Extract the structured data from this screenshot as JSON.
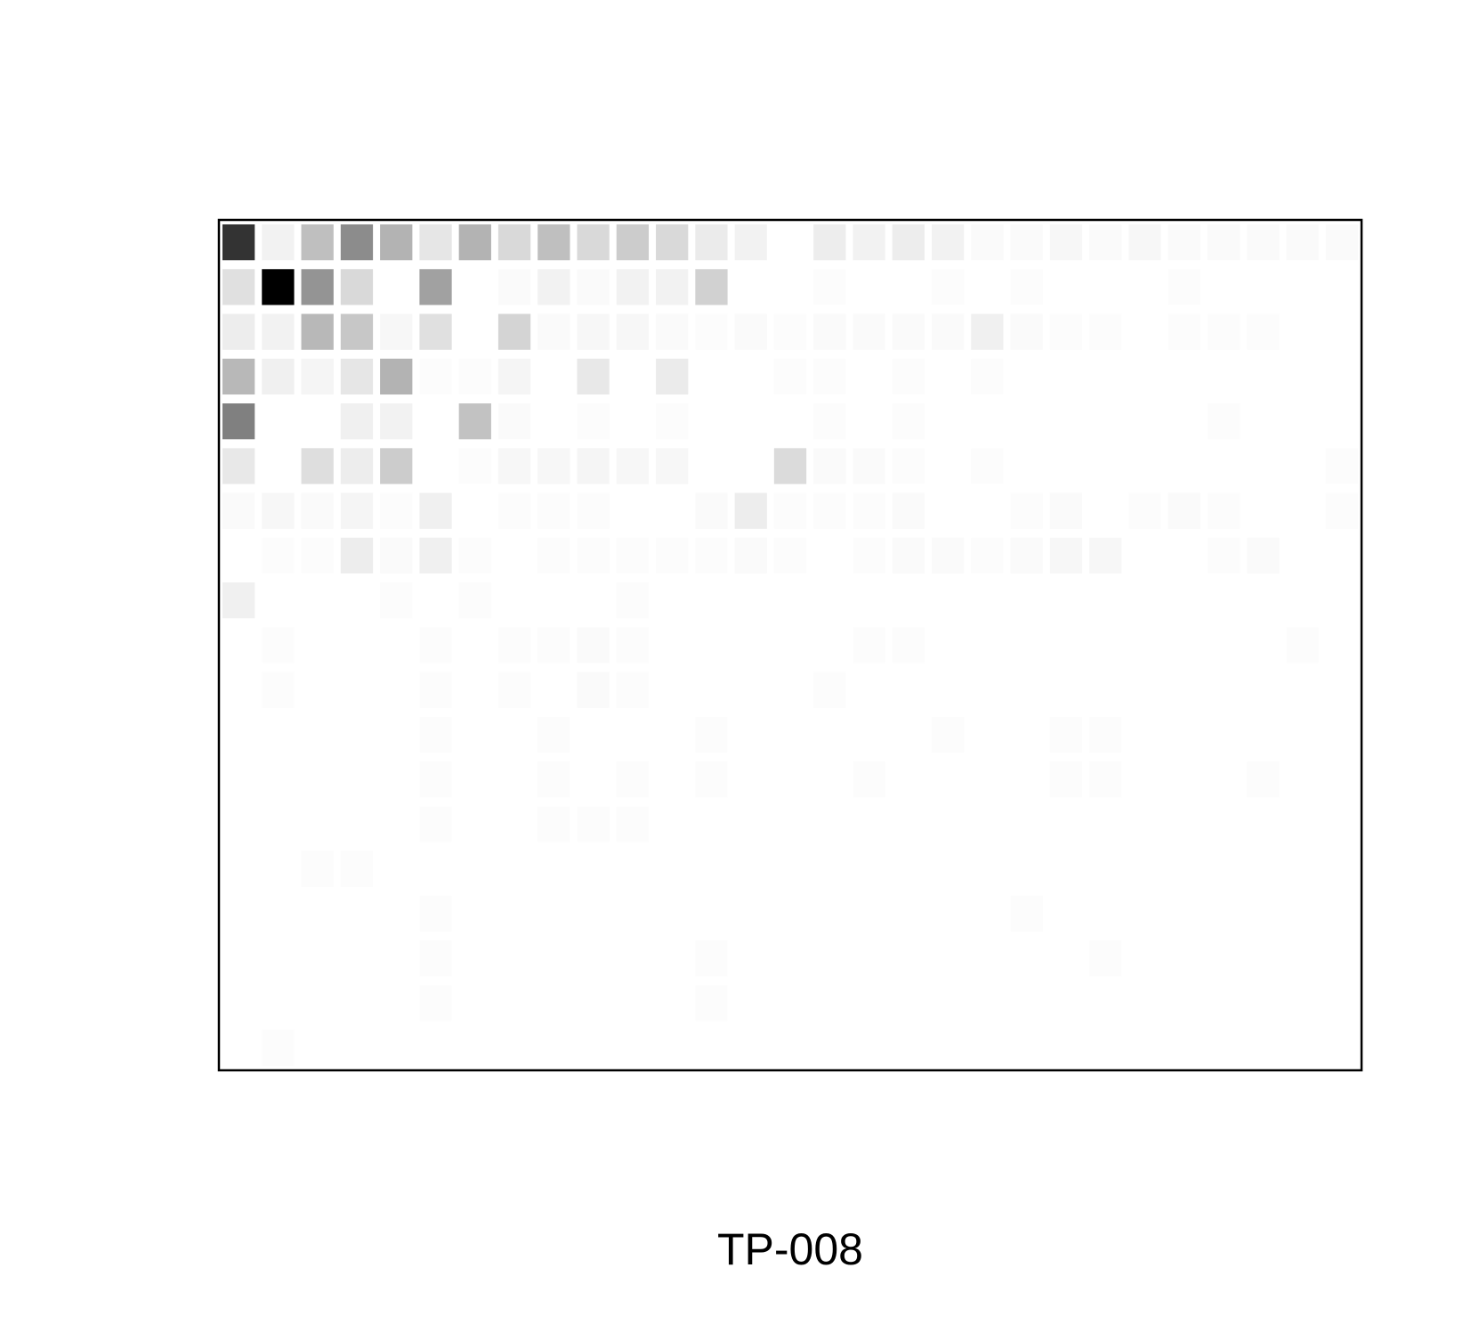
{
  "chart_data": {
    "type": "heatmap",
    "title": "TP-008",
    "xlabel": "",
    "ylabel": "",
    "grid": false,
    "n_cols": 29,
    "n_rows": 19,
    "value_range": [
      0,
      1
    ],
    "colors": {
      "low": "#ffffff",
      "high": "#000000",
      "frame": "#000000"
    },
    "values": [
      [
        0.8,
        0.05,
        0.25,
        0.45,
        0.3,
        0.1,
        0.3,
        0.15,
        0.25,
        0.15,
        0.2,
        0.15,
        0.08,
        0.05,
        0,
        0.07,
        0.05,
        0.07,
        0.05,
        0.02,
        0.02,
        0.03,
        0.02,
        0.03,
        0.02,
        0.02,
        0.02,
        0.02,
        0.02
      ],
      [
        0.12,
        1.0,
        0.42,
        0.15,
        0,
        0.37,
        0,
        0.02,
        0.05,
        0.02,
        0.05,
        0.05,
        0.18,
        0,
        0,
        0.01,
        0,
        0,
        0.01,
        0,
        0.01,
        0,
        0,
        0,
        0.01,
        0,
        0,
        0,
        0
      ],
      [
        0.07,
        0.05,
        0.28,
        0.22,
        0.03,
        0.12,
        0,
        0.17,
        0.02,
        0.03,
        0.03,
        0.02,
        0.01,
        0.02,
        0.01,
        0.02,
        0.02,
        0.02,
        0.02,
        0.06,
        0.02,
        0.01,
        0.01,
        0,
        0.01,
        0.01,
        0.01,
        0,
        0
      ],
      [
        0.28,
        0.06,
        0.04,
        0.1,
        0.3,
        0.01,
        0.01,
        0.04,
        0,
        0.09,
        0,
        0.08,
        0,
        0,
        0.01,
        0.01,
        0,
        0.01,
        0,
        0.01,
        0,
        0,
        0,
        0,
        0,
        0,
        0,
        0,
        0
      ],
      [
        0.5,
        0,
        0,
        0.06,
        0.05,
        0,
        0.24,
        0.02,
        0,
        0.01,
        0,
        0.01,
        0,
        0,
        0,
        0.01,
        0,
        0.01,
        0,
        0,
        0,
        0,
        0,
        0,
        0,
        0.01,
        0,
        0,
        0
      ],
      [
        0.09,
        0,
        0.13,
        0.07,
        0.2,
        0,
        0.01,
        0.03,
        0.03,
        0.04,
        0.03,
        0.03,
        0,
        0,
        0.14,
        0.02,
        0.02,
        0.01,
        0,
        0.01,
        0,
        0,
        0,
        0,
        0,
        0,
        0,
        0,
        0.01
      ],
      [
        0.02,
        0.03,
        0.02,
        0.04,
        0.01,
        0.06,
        0,
        0.01,
        0.01,
        0.01,
        0,
        0,
        0.02,
        0.07,
        0.01,
        0.01,
        0.01,
        0.02,
        0,
        0,
        0.01,
        0.02,
        0,
        0.01,
        0.02,
        0.01,
        0,
        0,
        0.01
      ],
      [
        0,
        0.01,
        0.01,
        0.07,
        0.02,
        0.06,
        0.01,
        0,
        0.01,
        0.01,
        0.01,
        0.01,
        0.01,
        0.02,
        0.01,
        0,
        0.01,
        0.02,
        0.02,
        0.01,
        0.02,
        0.03,
        0.03,
        0,
        0,
        0.01,
        0.02,
        0,
        0
      ],
      [
        0.06,
        0,
        0,
        0,
        0.01,
        0,
        0.01,
        0,
        0,
        0,
        0.01,
        0,
        0,
        0,
        0,
        0,
        0,
        0,
        0,
        0,
        0,
        0,
        0,
        0,
        0,
        0,
        0,
        0,
        0
      ],
      [
        0,
        0.01,
        0,
        0,
        0,
        0.01,
        0,
        0.01,
        0.01,
        0.02,
        0.01,
        0,
        0,
        0,
        0,
        0,
        0.01,
        0.01,
        0,
        0,
        0,
        0,
        0,
        0,
        0,
        0,
        0,
        0.01,
        0
      ],
      [
        0,
        0.01,
        0,
        0,
        0,
        0.01,
        0,
        0.01,
        0,
        0.02,
        0.01,
        0,
        0,
        0,
        0,
        0.01,
        0,
        0,
        0,
        0,
        0,
        0,
        0,
        0,
        0,
        0,
        0,
        0,
        0
      ],
      [
        0,
        0,
        0,
        0,
        0,
        0.01,
        0,
        0,
        0.01,
        0,
        0,
        0,
        0.01,
        0,
        0,
        0,
        0,
        0,
        0.01,
        0,
        0,
        0.01,
        0.01,
        0,
        0,
        0,
        0,
        0,
        0
      ],
      [
        0,
        0,
        0,
        0,
        0,
        0.01,
        0,
        0,
        0.01,
        0,
        0.01,
        0,
        0.01,
        0,
        0,
        0,
        0.01,
        0,
        0,
        0,
        0,
        0.01,
        0.01,
        0,
        0,
        0,
        0.01,
        0,
        0
      ],
      [
        0,
        0,
        0,
        0,
        0,
        0.01,
        0,
        0,
        0.01,
        0.01,
        0.01,
        0,
        0,
        0,
        0,
        0,
        0,
        0,
        0,
        0,
        0,
        0,
        0,
        0,
        0,
        0,
        0,
        0,
        0
      ],
      [
        0,
        0,
        0.01,
        0.01,
        0,
        0,
        0,
        0,
        0,
        0,
        0,
        0,
        0,
        0,
        0,
        0,
        0,
        0,
        0,
        0,
        0,
        0,
        0,
        0,
        0,
        0,
        0,
        0,
        0
      ],
      [
        0,
        0,
        0,
        0,
        0,
        0.01,
        0,
        0,
        0,
        0,
        0,
        0,
        0,
        0,
        0,
        0,
        0,
        0,
        0,
        0,
        0.01,
        0,
        0,
        0,
        0,
        0,
        0,
        0,
        0
      ],
      [
        0,
        0,
        0,
        0,
        0,
        0.01,
        0,
        0,
        0,
        0,
        0,
        0,
        0.01,
        0,
        0,
        0,
        0,
        0,
        0,
        0,
        0,
        0,
        0.01,
        0,
        0,
        0,
        0,
        0,
        0
      ],
      [
        0,
        0,
        0,
        0,
        0,
        0.01,
        0,
        0,
        0,
        0,
        0,
        0,
        0.01,
        0,
        0,
        0,
        0,
        0,
        0,
        0,
        0,
        0,
        0,
        0,
        0,
        0,
        0,
        0,
        0
      ],
      [
        0,
        0.01,
        0,
        0,
        0,
        0,
        0,
        0,
        0,
        0,
        0,
        0,
        0,
        0,
        0,
        0,
        0,
        0,
        0,
        0,
        0,
        0,
        0,
        0,
        0,
        0,
        0,
        0,
        0
      ]
    ]
  }
}
